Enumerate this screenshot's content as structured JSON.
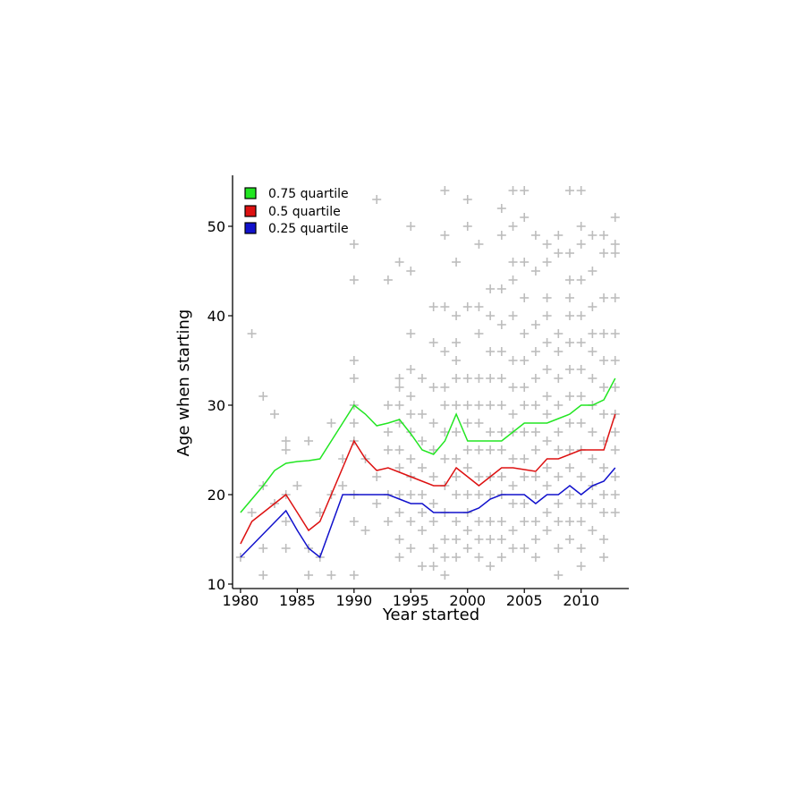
{
  "chart_data": {
    "type": "line",
    "title": "",
    "xlabel": "Year started",
    "ylabel": "Age when starting",
    "xlim": [
      1979.3,
      2014.2
    ],
    "ylim": [
      9.5,
      55.7
    ],
    "xticks": [
      1980,
      1985,
      1990,
      1995,
      2000,
      2005,
      2010
    ],
    "yticks": [
      10,
      20,
      30,
      40,
      50
    ],
    "grid": false,
    "legend_position": "top-left",
    "series": [
      {
        "name": "0.75 quartile",
        "color": "#22e622",
        "x": [
          1980,
          1981,
          1982,
          1983,
          1984,
          1985,
          1986,
          1987,
          1988,
          1989,
          1990,
          1991,
          1992,
          1993,
          1994,
          1995,
          1996,
          1997,
          1998,
          1999,
          2000,
          2001,
          2002,
          2003,
          2004,
          2005,
          2006,
          2007,
          2008,
          2009,
          2010,
          2011,
          2012,
          2013
        ],
        "values": [
          18,
          19.5,
          21,
          22.7,
          23.5,
          23.7,
          23.8,
          24,
          26,
          28,
          30,
          29,
          27.7,
          28,
          28.4,
          26.8,
          25,
          24.5,
          26,
          29,
          26,
          26,
          26,
          26,
          27,
          28,
          28,
          28,
          28.5,
          29,
          30,
          30,
          30.6,
          33
        ]
      },
      {
        "name": "0.5 quartile",
        "color": "#dd1111",
        "x": [
          1980,
          1981,
          1982,
          1983,
          1984,
          1985,
          1986,
          1987,
          1988,
          1989,
          1990,
          1991,
          1992,
          1993,
          1994,
          1995,
          1996,
          1997,
          1998,
          1999,
          2000,
          2001,
          2002,
          2003,
          2004,
          2005,
          2006,
          2007,
          2008,
          2009,
          2010,
          2011,
          2012,
          2013
        ],
        "values": [
          14.5,
          17,
          18,
          19,
          20,
          18,
          16,
          17,
          20,
          23,
          26,
          24,
          22.7,
          23,
          22.5,
          22,
          21.5,
          21,
          21,
          23,
          22,
          21,
          22,
          23,
          23,
          22.8,
          22.6,
          24,
          24,
          24.5,
          25,
          25,
          25,
          29
        ]
      },
      {
        "name": "0.25 quartile",
        "color": "#1111cc",
        "x": [
          1980,
          1981,
          1982,
          1983,
          1984,
          1985,
          1986,
          1987,
          1988,
          1989,
          1990,
          1991,
          1992,
          1993,
          1994,
          1995,
          1996,
          1997,
          1998,
          1999,
          2000,
          2001,
          2002,
          2003,
          2004,
          2005,
          2006,
          2007,
          2008,
          2009,
          2010,
          2011,
          2012,
          2013
        ],
        "values": [
          13,
          14.3,
          15.6,
          16.9,
          18.2,
          16,
          14,
          13,
          16.5,
          20,
          20,
          20,
          20,
          20,
          19.5,
          19,
          19,
          18,
          18,
          18,
          18,
          18.5,
          19.5,
          20,
          20,
          20,
          19,
          20,
          20,
          21,
          20,
          21,
          21.5,
          23
        ]
      }
    ],
    "scatter": {
      "color": "#bdbdbd",
      "marker": "+",
      "points": [
        [
          1980,
          13
        ],
        [
          1981,
          38
        ],
        [
          1981,
          18
        ],
        [
          1982,
          31
        ],
        [
          1982,
          21
        ],
        [
          1982,
          14
        ],
        [
          1982,
          11
        ],
        [
          1983,
          29
        ],
        [
          1983,
          19
        ],
        [
          1984,
          26
        ],
        [
          1984,
          25
        ],
        [
          1984,
          20
        ],
        [
          1984,
          17
        ],
        [
          1984,
          14
        ],
        [
          1985,
          21
        ],
        [
          1986,
          26
        ],
        [
          1986,
          14
        ],
        [
          1986,
          11
        ],
        [
          1987,
          18
        ],
        [
          1987,
          13
        ],
        [
          1988,
          28
        ],
        [
          1988,
          11
        ],
        [
          1988,
          20
        ],
        [
          1989,
          24
        ],
        [
          1989,
          21
        ],
        [
          1990,
          48
        ],
        [
          1990,
          44
        ],
        [
          1990,
          35
        ],
        [
          1990,
          33
        ],
        [
          1990,
          30
        ],
        [
          1990,
          28
        ],
        [
          1990,
          26
        ],
        [
          1990,
          20
        ],
        [
          1990,
          17
        ],
        [
          1990,
          11
        ],
        [
          1991,
          24
        ],
        [
          1991,
          16
        ],
        [
          1992,
          53
        ],
        [
          1992,
          22
        ],
        [
          1992,
          19
        ],
        [
          1993,
          44
        ],
        [
          1993,
          30
        ],
        [
          1993,
          27
        ],
        [
          1993,
          25
        ],
        [
          1993,
          20
        ],
        [
          1993,
          17
        ],
        [
          1994,
          46
        ],
        [
          1994,
          33
        ],
        [
          1994,
          32
        ],
        [
          1994,
          30
        ],
        [
          1994,
          28
        ],
        [
          1994,
          25
        ],
        [
          1994,
          23
        ],
        [
          1994,
          20
        ],
        [
          1994,
          18
        ],
        [
          1994,
          15
        ],
        [
          1994,
          13
        ],
        [
          1995,
          50
        ],
        [
          1995,
          45
        ],
        [
          1995,
          38
        ],
        [
          1995,
          34
        ],
        [
          1995,
          31
        ],
        [
          1995,
          29
        ],
        [
          1995,
          27
        ],
        [
          1995,
          24
        ],
        [
          1995,
          22
        ],
        [
          1995,
          20
        ],
        [
          1995,
          17
        ],
        [
          1995,
          14
        ],
        [
          1996,
          33
        ],
        [
          1996,
          29
        ],
        [
          1996,
          26
        ],
        [
          1996,
          23
        ],
        [
          1996,
          20
        ],
        [
          1996,
          18
        ],
        [
          1996,
          16
        ],
        [
          1996,
          12
        ],
        [
          1997,
          41
        ],
        [
          1997,
          37
        ],
        [
          1997,
          32
        ],
        [
          1997,
          28
        ],
        [
          1997,
          25
        ],
        [
          1997,
          22
        ],
        [
          1997,
          19
        ],
        [
          1997,
          17
        ],
        [
          1997,
          14
        ],
        [
          1997,
          12
        ],
        [
          1998,
          54
        ],
        [
          1998,
          49
        ],
        [
          1998,
          41
        ],
        [
          1998,
          36
        ],
        [
          1998,
          32
        ],
        [
          1998,
          30
        ],
        [
          1998,
          27
        ],
        [
          1998,
          24
        ],
        [
          1998,
          21
        ],
        [
          1998,
          18
        ],
        [
          1998,
          15
        ],
        [
          1998,
          13
        ],
        [
          1998,
          11
        ],
        [
          1999,
          46
        ],
        [
          1999,
          40
        ],
        [
          1999,
          37
        ],
        [
          1999,
          35
        ],
        [
          1999,
          33
        ],
        [
          1999,
          30
        ],
        [
          1999,
          27
        ],
        [
          1999,
          24
        ],
        [
          1999,
          22
        ],
        [
          1999,
          20
        ],
        [
          1999,
          17
        ],
        [
          1999,
          15
        ],
        [
          1999,
          13
        ],
        [
          2000,
          53
        ],
        [
          2000,
          50
        ],
        [
          2000,
          41
        ],
        [
          2000,
          33
        ],
        [
          2000,
          30
        ],
        [
          2000,
          28
        ],
        [
          2000,
          25
        ],
        [
          2000,
          23
        ],
        [
          2000,
          20
        ],
        [
          2000,
          18
        ],
        [
          2000,
          16
        ],
        [
          2000,
          14
        ],
        [
          2001,
          48
        ],
        [
          2001,
          41
        ],
        [
          2001,
          38
        ],
        [
          2001,
          33
        ],
        [
          2001,
          30
        ],
        [
          2001,
          28
        ],
        [
          2001,
          25
        ],
        [
          2001,
          22
        ],
        [
          2001,
          20
        ],
        [
          2001,
          17
        ],
        [
          2001,
          15
        ],
        [
          2001,
          13
        ],
        [
          2002,
          43
        ],
        [
          2002,
          40
        ],
        [
          2002,
          36
        ],
        [
          2002,
          33
        ],
        [
          2002,
          30
        ],
        [
          2002,
          27
        ],
        [
          2002,
          25
        ],
        [
          2002,
          22
        ],
        [
          2002,
          20
        ],
        [
          2002,
          17
        ],
        [
          2002,
          15
        ],
        [
          2002,
          12
        ],
        [
          2003,
          52
        ],
        [
          2003,
          49
        ],
        [
          2003,
          43
        ],
        [
          2003,
          39
        ],
        [
          2003,
          36
        ],
        [
          2003,
          33
        ],
        [
          2003,
          30
        ],
        [
          2003,
          27
        ],
        [
          2003,
          25
        ],
        [
          2003,
          22
        ],
        [
          2003,
          20
        ],
        [
          2003,
          17
        ],
        [
          2003,
          15
        ],
        [
          2003,
          13
        ],
        [
          2004,
          54
        ],
        [
          2004,
          50
        ],
        [
          2004,
          46
        ],
        [
          2004,
          44
        ],
        [
          2004,
          40
        ],
        [
          2004,
          35
        ],
        [
          2004,
          32
        ],
        [
          2004,
          29
        ],
        [
          2004,
          27
        ],
        [
          2004,
          24
        ],
        [
          2004,
          21
        ],
        [
          2004,
          19
        ],
        [
          2004,
          16
        ],
        [
          2004,
          14
        ],
        [
          2005,
          54
        ],
        [
          2005,
          51
        ],
        [
          2005,
          46
        ],
        [
          2005,
          42
        ],
        [
          2005,
          38
        ],
        [
          2005,
          35
        ],
        [
          2005,
          32
        ],
        [
          2005,
          30
        ],
        [
          2005,
          27
        ],
        [
          2005,
          24
        ],
        [
          2005,
          22
        ],
        [
          2005,
          19
        ],
        [
          2005,
          17
        ],
        [
          2005,
          14
        ],
        [
          2006,
          49
        ],
        [
          2006,
          45
        ],
        [
          2006,
          39
        ],
        [
          2006,
          36
        ],
        [
          2006,
          33
        ],
        [
          2006,
          30
        ],
        [
          2006,
          27
        ],
        [
          2006,
          25
        ],
        [
          2006,
          22
        ],
        [
          2006,
          20
        ],
        [
          2006,
          17
        ],
        [
          2006,
          15
        ],
        [
          2006,
          13
        ],
        [
          2007,
          48
        ],
        [
          2007,
          46
        ],
        [
          2007,
          42
        ],
        [
          2007,
          40
        ],
        [
          2007,
          37
        ],
        [
          2007,
          34
        ],
        [
          2007,
          31
        ],
        [
          2007,
          29
        ],
        [
          2007,
          26
        ],
        [
          2007,
          23
        ],
        [
          2007,
          21
        ],
        [
          2007,
          18
        ],
        [
          2007,
          16
        ],
        [
          2008,
          49
        ],
        [
          2008,
          47
        ],
        [
          2008,
          38
        ],
        [
          2008,
          36
        ],
        [
          2008,
          33
        ],
        [
          2008,
          30
        ],
        [
          2008,
          27
        ],
        [
          2008,
          25
        ],
        [
          2008,
          22
        ],
        [
          2008,
          19
        ],
        [
          2008,
          17
        ],
        [
          2008,
          14
        ],
        [
          2008,
          11
        ],
        [
          2009,
          54
        ],
        [
          2009,
          47
        ],
        [
          2009,
          44
        ],
        [
          2009,
          42
        ],
        [
          2009,
          40
        ],
        [
          2009,
          37
        ],
        [
          2009,
          34
        ],
        [
          2009,
          31
        ],
        [
          2009,
          28
        ],
        [
          2009,
          25
        ],
        [
          2009,
          23
        ],
        [
          2009,
          20
        ],
        [
          2009,
          17
        ],
        [
          2009,
          15
        ],
        [
          2010,
          54
        ],
        [
          2010,
          50
        ],
        [
          2010,
          48
        ],
        [
          2010,
          44
        ],
        [
          2010,
          40
        ],
        [
          2010,
          37
        ],
        [
          2010,
          34
        ],
        [
          2010,
          31
        ],
        [
          2010,
          28
        ],
        [
          2010,
          25
        ],
        [
          2010,
          22
        ],
        [
          2010,
          19
        ],
        [
          2010,
          17
        ],
        [
          2010,
          14
        ],
        [
          2010,
          12
        ],
        [
          2011,
          49
        ],
        [
          2011,
          45
        ],
        [
          2011,
          41
        ],
        [
          2011,
          38
        ],
        [
          2011,
          36
        ],
        [
          2011,
          33
        ],
        [
          2011,
          30
        ],
        [
          2011,
          27
        ],
        [
          2011,
          24
        ],
        [
          2011,
          21
        ],
        [
          2011,
          19
        ],
        [
          2011,
          16
        ],
        [
          2012,
          49
        ],
        [
          2012,
          47
        ],
        [
          2012,
          42
        ],
        [
          2012,
          38
        ],
        [
          2012,
          35
        ],
        [
          2012,
          32
        ],
        [
          2012,
          29
        ],
        [
          2012,
          26
        ],
        [
          2012,
          23
        ],
        [
          2012,
          20
        ],
        [
          2012,
          18
        ],
        [
          2012,
          15
        ],
        [
          2012,
          13
        ],
        [
          2013,
          51
        ],
        [
          2013,
          48
        ],
        [
          2013,
          47
        ],
        [
          2013,
          42
        ],
        [
          2013,
          38
        ],
        [
          2013,
          35
        ],
        [
          2013,
          32
        ],
        [
          2013,
          29
        ],
        [
          2013,
          27
        ],
        [
          2013,
          25
        ],
        [
          2013,
          22
        ],
        [
          2013,
          20
        ],
        [
          2013,
          18
        ]
      ]
    }
  }
}
